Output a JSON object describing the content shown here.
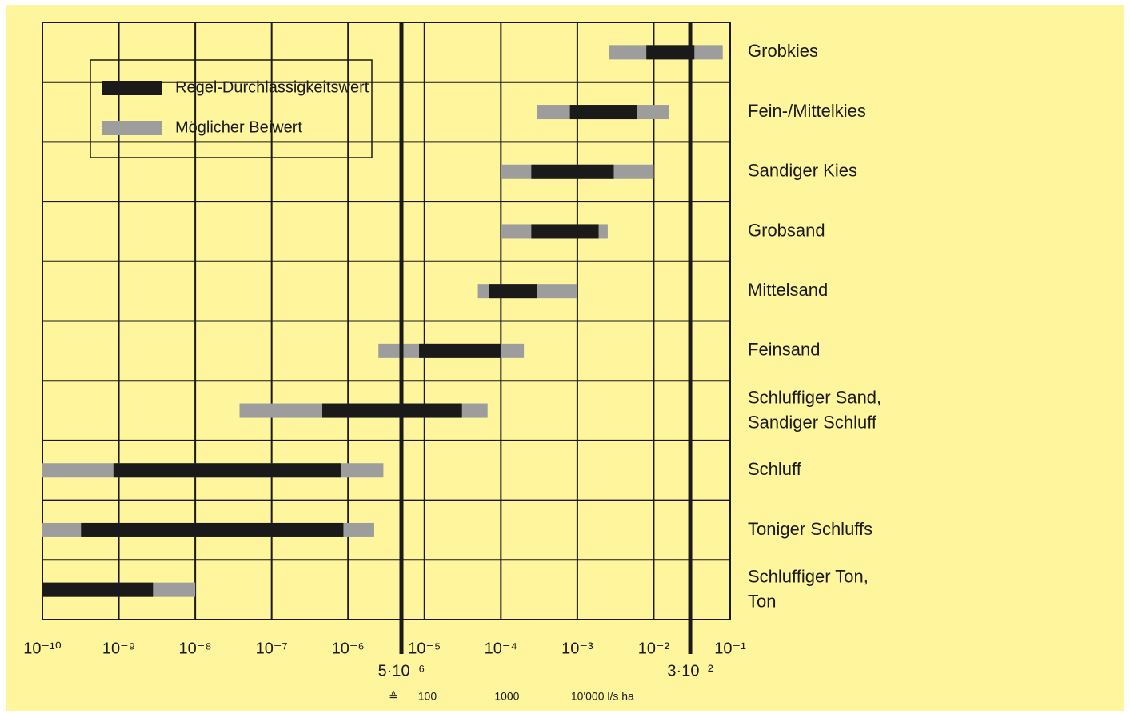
{
  "chart_data": {
    "type": "floating_bar",
    "categories": [
      "Grobkies",
      "Fein-/Mittelkies",
      "Sandiger Kies",
      "Grobsand",
      "Mittelsand",
      "Feinsand",
      "Schluffiger Sand,\nSandiger Schluff",
      "Schluff",
      "Toniger Schluffs",
      "Schluffiger Ton,\nTon"
    ],
    "series": [
      {
        "name": "Regel-Durchlässigkeitswert",
        "color": "#1a1a1a",
        "low": [
          0.008,
          0.0008,
          0.00025,
          0.00025,
          7e-05,
          8.5e-06,
          4.6e-07,
          8.5e-10,
          3.2e-10,
          1e-10
        ],
        "high": [
          0.034,
          0.006,
          0.003,
          0.0019,
          0.0003,
          0.0001,
          3.1e-05,
          8e-07,
          8.7e-07,
          2.8e-09
        ]
      },
      {
        "name": "Möglicher Beiwert",
        "color": "#9d9d9d",
        "low": [
          0.0026,
          0.0003,
          0.0001,
          0.0001,
          5e-05,
          2.5e-06,
          3.8e-08,
          1e-10,
          1e-10,
          1e-10
        ],
        "high": [
          0.08,
          0.016,
          0.01,
          0.0025,
          0.001,
          0.0002,
          6.7e-05,
          2.9e-06,
          2.2e-06,
          1e-08
        ]
      }
    ],
    "xscale": "log",
    "xlim": [
      1e-10,
      0.1
    ],
    "xticks": [
      {
        "value": 1e-10,
        "label": "10⁻¹⁰"
      },
      {
        "value": 1e-09,
        "label": "10⁻⁹"
      },
      {
        "value": 1e-08,
        "label": "10⁻⁸"
      },
      {
        "value": 1e-07,
        "label": "10⁻⁷"
      },
      {
        "value": 1e-06,
        "label": "10⁻⁶"
      },
      {
        "value": 1e-05,
        "label": "10⁻⁵"
      },
      {
        "value": 0.0001,
        "label": "10⁻⁴"
      },
      {
        "value": 0.001,
        "label": "10⁻³"
      },
      {
        "value": 0.01,
        "label": "10⁻²"
      },
      {
        "value": 0.1,
        "label": "10⁻¹"
      }
    ],
    "reference_lines": [
      {
        "value": 5e-06,
        "label": "5·10⁻⁶"
      },
      {
        "value": 0.03,
        "label": "3·10⁻²"
      }
    ],
    "x2lim": [
      0.001,
      1000000
    ],
    "x2ticks": [
      100,
      1000,
      {
        "value": 10000,
        "label": "10'000 l/s ha"
      }
    ],
    "x2_symbol": "≙",
    "grid": true,
    "legend": "upper left"
  }
}
